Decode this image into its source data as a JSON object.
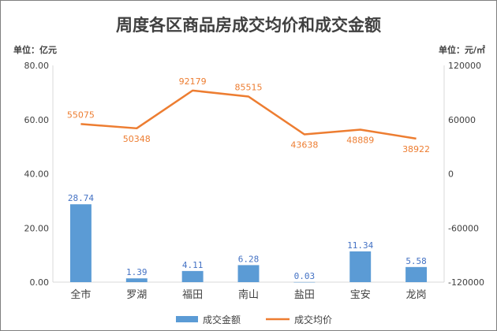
{
  "title": "周度各区商品房成交均价和成交金额",
  "left_unit": "单位：亿元",
  "right_unit": "单位：元/㎡",
  "legend": {
    "bar": "成交金额",
    "line": "成交均价"
  },
  "colors": {
    "bar": "#5b9bd5",
    "line": "#ed7d31",
    "bar_label": "#4472c4",
    "axis": "#d9d9d9"
  },
  "chart_data": {
    "type": "bar",
    "categories": [
      "全市",
      "罗湖",
      "福田",
      "南山",
      "盐田",
      "宝安",
      "龙岗"
    ],
    "series": [
      {
        "name": "成交金额",
        "type": "bar",
        "axis": "left",
        "values": [
          28.74,
          1.39,
          4.11,
          6.28,
          0.03,
          11.34,
          5.58
        ],
        "labels": [
          "28.74",
          "1.39",
          "4.11",
          "6.28",
          "0.03",
          "11.34",
          "5.58"
        ]
      },
      {
        "name": "成交均价",
        "type": "line",
        "axis": "right",
        "values": [
          55075,
          50348,
          92179,
          85515,
          43638,
          48889,
          38922
        ],
        "labels": [
          "55075",
          "50348",
          "92179",
          "85515",
          "43638",
          "48889",
          "38922"
        ]
      }
    ],
    "y_left": {
      "range": [
        0,
        80
      ],
      "ticks": [
        "0.00",
        "20.00",
        "40.00",
        "60.00",
        "80.00"
      ]
    },
    "y_right": {
      "range": [
        -120000,
        120000
      ],
      "ticks": [
        "-120000",
        "-60000",
        "0",
        "60000",
        "120000"
      ]
    },
    "grid": false,
    "legend_position": "bottom"
  }
}
